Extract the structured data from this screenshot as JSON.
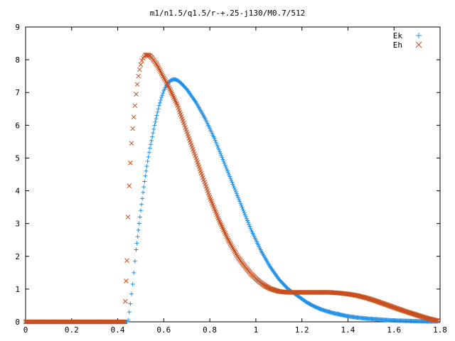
{
  "chart_data": {
    "type": "scatter",
    "title": "m1/n1.5/q1.5/r-+.25-j130/M0.7/512",
    "xlabel": "",
    "ylabel": "",
    "xlim": [
      0,
      1.8
    ],
    "ylim": [
      0,
      9
    ],
    "xticks": [
      0,
      0.2,
      0.4,
      0.6,
      0.8,
      1,
      1.2,
      1.4,
      1.6,
      1.8
    ],
    "xtick_labels": [
      "0",
      "0.2",
      "0.4",
      "0.6",
      "0.8",
      "1",
      "1.2",
      "1.4",
      "1.6",
      "1.8"
    ],
    "yticks": [
      0,
      1,
      2,
      3,
      4,
      5,
      6,
      7,
      8,
      9
    ],
    "ytick_labels": [
      "0",
      "1",
      "2",
      "3",
      "4",
      "5",
      "6",
      "7",
      "8",
      "9"
    ],
    "grid": false,
    "legend_position": "top-right",
    "series": [
      {
        "name": "Ek",
        "marker": "plus",
        "color": "#1e90e8",
        "points": [
          [
            0.0,
            0
          ],
          [
            0.44,
            0
          ],
          [
            0.445,
            0.05
          ],
          [
            0.45,
            0.3
          ],
          [
            0.455,
            0.55
          ],
          [
            0.46,
            0.85
          ],
          [
            0.465,
            1.15
          ],
          [
            0.47,
            1.5
          ],
          [
            0.475,
            1.85
          ],
          [
            0.48,
            2.2
          ],
          [
            0.49,
            2.8
          ],
          [
            0.5,
            3.4
          ],
          [
            0.51,
            3.95
          ],
          [
            0.52,
            4.45
          ],
          [
            0.53,
            4.9
          ],
          [
            0.54,
            5.3
          ],
          [
            0.55,
            5.65
          ],
          [
            0.56,
            6.0
          ],
          [
            0.57,
            6.3
          ],
          [
            0.58,
            6.6
          ],
          [
            0.59,
            6.85
          ],
          [
            0.6,
            7.05
          ],
          [
            0.61,
            7.2
          ],
          [
            0.62,
            7.3
          ],
          [
            0.63,
            7.37
          ],
          [
            0.64,
            7.4
          ],
          [
            0.65,
            7.4
          ],
          [
            0.66,
            7.37
          ],
          [
            0.67,
            7.32
          ],
          [
            0.68,
            7.25
          ],
          [
            0.7,
            7.1
          ],
          [
            0.72,
            6.9
          ],
          [
            0.74,
            6.7
          ],
          [
            0.76,
            6.45
          ],
          [
            0.78,
            6.2
          ],
          [
            0.8,
            5.9
          ],
          [
            0.82,
            5.6
          ],
          [
            0.84,
            5.25
          ],
          [
            0.86,
            4.9
          ],
          [
            0.88,
            4.55
          ],
          [
            0.9,
            4.2
          ],
          [
            0.92,
            3.85
          ],
          [
            0.94,
            3.5
          ],
          [
            0.96,
            3.15
          ],
          [
            0.98,
            2.8
          ],
          [
            1.0,
            2.5
          ],
          [
            1.02,
            2.2
          ],
          [
            1.04,
            1.95
          ],
          [
            1.06,
            1.7
          ],
          [
            1.08,
            1.5
          ],
          [
            1.1,
            1.3
          ],
          [
            1.12,
            1.15
          ],
          [
            1.14,
            1.0
          ],
          [
            1.16,
            0.9
          ],
          [
            1.18,
            0.8
          ],
          [
            1.2,
            0.7
          ],
          [
            1.22,
            0.6
          ],
          [
            1.24,
            0.52
          ],
          [
            1.26,
            0.45
          ],
          [
            1.28,
            0.39
          ],
          [
            1.3,
            0.34
          ],
          [
            1.32,
            0.3
          ],
          [
            1.34,
            0.26
          ],
          [
            1.36,
            0.23
          ],
          [
            1.38,
            0.2
          ],
          [
            1.4,
            0.17
          ],
          [
            1.44,
            0.13
          ],
          [
            1.48,
            0.1
          ],
          [
            1.52,
            0.08
          ],
          [
            1.56,
            0.06
          ],
          [
            1.6,
            0.04
          ],
          [
            1.65,
            0.03
          ],
          [
            1.7,
            0.02
          ],
          [
            1.75,
            0.01
          ],
          [
            1.79,
            0.01
          ]
        ]
      },
      {
        "name": "Eh",
        "marker": "cross",
        "color": "#c8501e",
        "points": [
          [
            0.0,
            0
          ],
          [
            0.43,
            0
          ],
          [
            0.44,
            1.87
          ],
          [
            0.445,
            3.2
          ],
          [
            0.45,
            4.15
          ],
          [
            0.455,
            4.85
          ],
          [
            0.46,
            5.45
          ],
          [
            0.465,
            5.9
          ],
          [
            0.47,
            6.25
          ],
          [
            0.475,
            6.6
          ],
          [
            0.48,
            6.95
          ],
          [
            0.485,
            7.25
          ],
          [
            0.49,
            7.5
          ],
          [
            0.495,
            7.7
          ],
          [
            0.5,
            7.85
          ],
          [
            0.505,
            7.97
          ],
          [
            0.51,
            8.05
          ],
          [
            0.515,
            8.1
          ],
          [
            0.52,
            8.14
          ],
          [
            0.53,
            8.15
          ],
          [
            0.54,
            8.12
          ],
          [
            0.55,
            8.05
          ],
          [
            0.56,
            7.95
          ],
          [
            0.57,
            7.85
          ],
          [
            0.58,
            7.72
          ],
          [
            0.6,
            7.45
          ],
          [
            0.62,
            7.2
          ],
          [
            0.64,
            6.9
          ],
          [
            0.66,
            6.6
          ],
          [
            0.68,
            6.2
          ],
          [
            0.7,
            5.8
          ],
          [
            0.72,
            5.4
          ],
          [
            0.74,
            5.0
          ],
          [
            0.76,
            4.6
          ],
          [
            0.78,
            4.2
          ],
          [
            0.8,
            3.8
          ],
          [
            0.82,
            3.45
          ],
          [
            0.84,
            3.1
          ],
          [
            0.86,
            2.8
          ],
          [
            0.88,
            2.5
          ],
          [
            0.9,
            2.25
          ],
          [
            0.92,
            2.0
          ],
          [
            0.94,
            1.8
          ],
          [
            0.96,
            1.62
          ],
          [
            0.98,
            1.46
          ],
          [
            1.0,
            1.32
          ],
          [
            1.02,
            1.2
          ],
          [
            1.04,
            1.1
          ],
          [
            1.06,
            1.02
          ],
          [
            1.08,
            0.97
          ],
          [
            1.1,
            0.93
          ],
          [
            1.12,
            0.91
          ],
          [
            1.14,
            0.9
          ],
          [
            1.16,
            0.9
          ],
          [
            1.2,
            0.9
          ],
          [
            1.24,
            0.9
          ],
          [
            1.28,
            0.9
          ],
          [
            1.32,
            0.9
          ],
          [
            1.36,
            0.88
          ],
          [
            1.4,
            0.85
          ],
          [
            1.44,
            0.8
          ],
          [
            1.48,
            0.73
          ],
          [
            1.52,
            0.64
          ],
          [
            1.56,
            0.54
          ],
          [
            1.6,
            0.44
          ],
          [
            1.64,
            0.34
          ],
          [
            1.68,
            0.25
          ],
          [
            1.72,
            0.16
          ],
          [
            1.76,
            0.08
          ],
          [
            1.79,
            0.03
          ]
        ]
      }
    ]
  }
}
